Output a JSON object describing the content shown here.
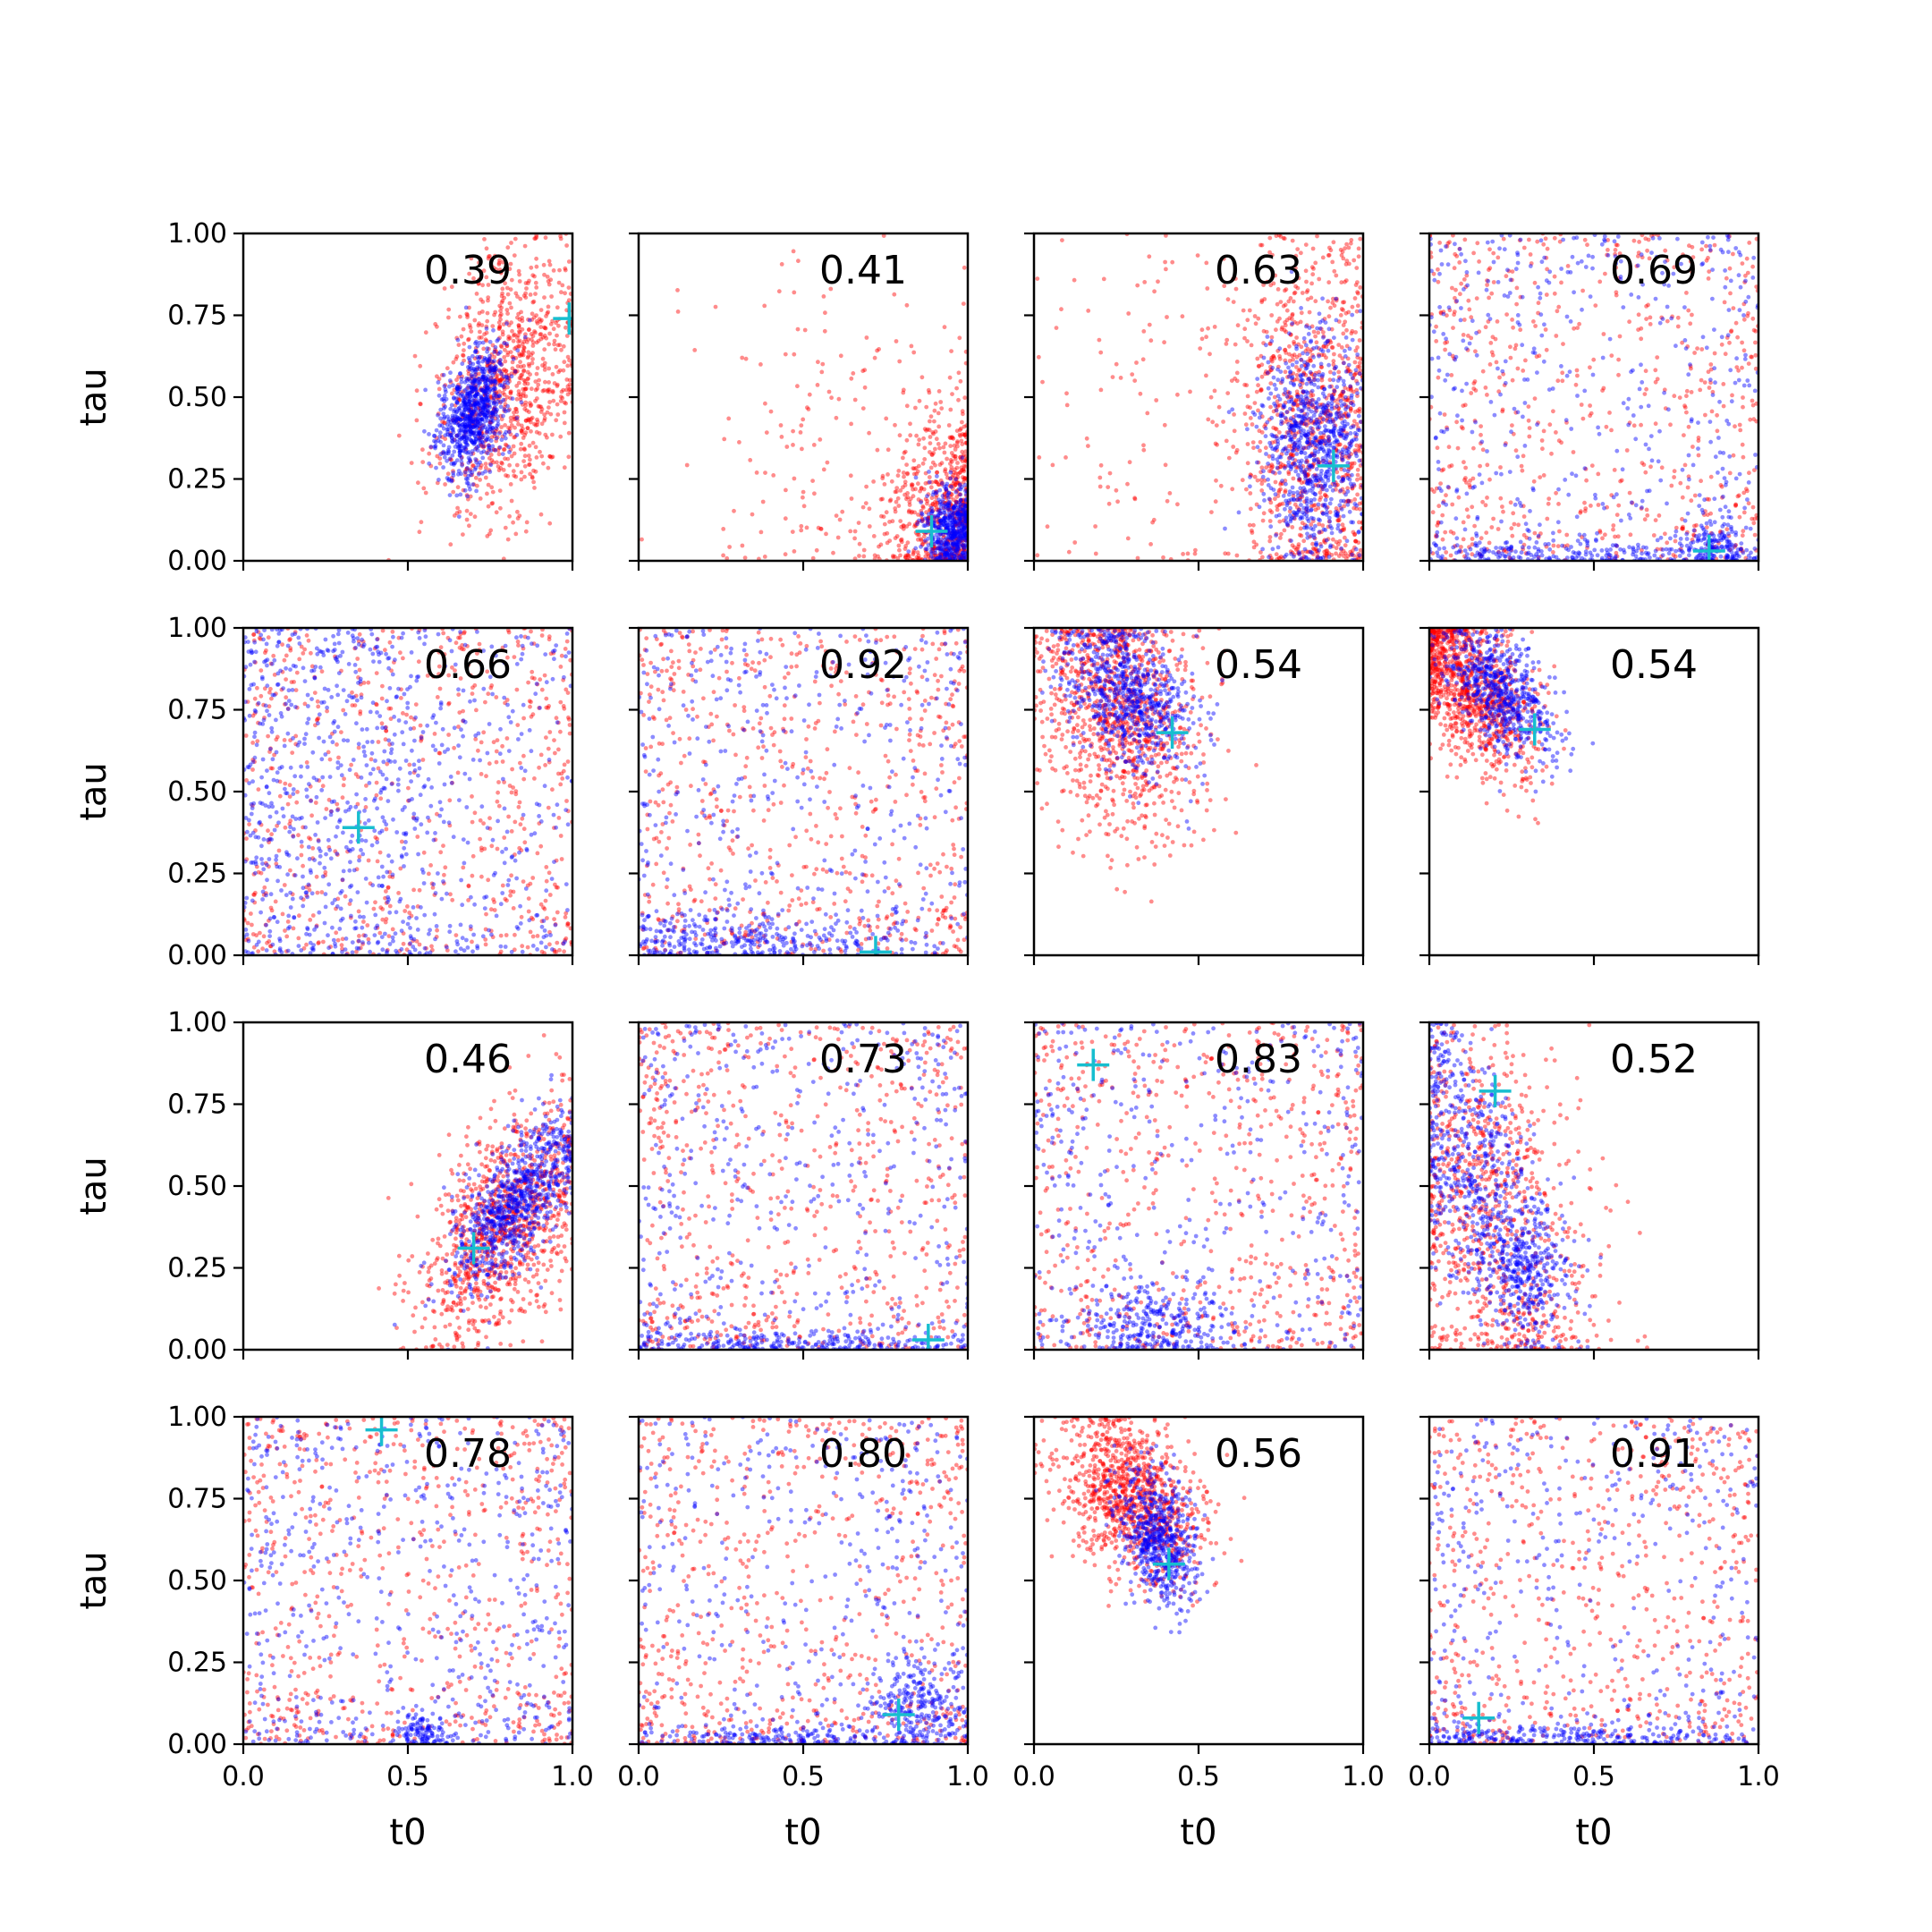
{
  "figure": {
    "x_axis_label": "t0",
    "y_axis_label": "tau",
    "x_ticks": [
      "0.0",
      "0.5",
      "1.0"
    ],
    "y_ticks": [
      "0.00",
      "0.25",
      "0.50",
      "0.75",
      "1.00"
    ]
  },
  "chart_data": {
    "type": "scatter",
    "layout": "4x4 grid",
    "xlim": [
      0,
      1
    ],
    "ylim": [
      0,
      1
    ],
    "xlabel": "t0",
    "ylabel": "tau",
    "colors": {
      "series_a": "#ff0000",
      "series_b": "#0000ff",
      "marker": "#17becf"
    },
    "panels": [
      {
        "score": "0.39",
        "marker": [
          0.99,
          0.74
        ],
        "red": [
          {
            "x": 0.8,
            "y": 0.55,
            "sx": 0.11,
            "sy": 0.2,
            "r": 0.3,
            "n": 900
          }
        ],
        "blue": [
          {
            "x": 0.7,
            "y": 0.45,
            "sx": 0.05,
            "sy": 0.1,
            "r": 0.4,
            "n": 800
          }
        ]
      },
      {
        "score": "0.41",
        "marker": [
          0.89,
          0.09
        ],
        "red": [
          {
            "x": 0.93,
            "y": 0.15,
            "sx": 0.1,
            "sy": 0.16,
            "r": 0,
            "n": 600
          },
          {
            "x": 0.6,
            "y": 0.35,
            "sx": 0.25,
            "sy": 0.28,
            "r": 0,
            "n": 180
          }
        ],
        "blue": [
          {
            "x": 0.95,
            "y": 0.1,
            "sx": 0.04,
            "sy": 0.06,
            "r": 0,
            "n": 500
          }
        ]
      },
      {
        "score": "0.63",
        "marker": [
          0.91,
          0.29
        ],
        "red": [
          {
            "x": 0.85,
            "y": 0.4,
            "sx": 0.12,
            "sy": 0.3,
            "r": 0,
            "n": 900
          },
          {
            "x": 0.5,
            "y": 0.5,
            "sx": 0.25,
            "sy": 0.3,
            "r": 0,
            "n": 150
          }
        ],
        "blue": [
          {
            "x": 0.85,
            "y": 0.35,
            "sx": 0.08,
            "sy": 0.18,
            "r": 0,
            "n": 800
          }
        ]
      },
      {
        "score": "0.69",
        "marker": [
          0.85,
          0.03
        ],
        "red": [
          {
            "x": 0.5,
            "y": 0.5,
            "sx": 0.55,
            "sy": 0.55,
            "r": 0,
            "n": 650
          }
        ],
        "blue": [
          {
            "x": 0.5,
            "y": 0.5,
            "sx": 0.55,
            "sy": 0.55,
            "r": 0,
            "n": 450
          },
          {
            "x": 0.5,
            "y": 0.02,
            "sx": 0.3,
            "sy": 0.02,
            "r": 0,
            "n": 200
          },
          {
            "x": 0.87,
            "y": 0.05,
            "sx": 0.04,
            "sy": 0.04,
            "r": 0,
            "n": 120
          }
        ]
      },
      {
        "score": "0.66",
        "marker": [
          0.35,
          0.39
        ],
        "red": [
          {
            "x": 0.5,
            "y": 0.5,
            "sx": 0.55,
            "sy": 0.55,
            "r": 0,
            "n": 700
          }
        ],
        "blue": [
          {
            "x": 0.3,
            "y": 0.5,
            "sx": 0.25,
            "sy": 0.35,
            "r": -0.2,
            "n": 600
          },
          {
            "x": 0.5,
            "y": 0.5,
            "sx": 0.55,
            "sy": 0.55,
            "r": 0,
            "n": 300
          }
        ]
      },
      {
        "score": "0.92",
        "marker": [
          0.72,
          0.01
        ],
        "red": [
          {
            "x": 0.5,
            "y": 0.5,
            "sx": 0.55,
            "sy": 0.55,
            "r": 0,
            "n": 650
          }
        ],
        "blue": [
          {
            "x": 0.5,
            "y": 0.5,
            "sx": 0.55,
            "sy": 0.55,
            "r": 0,
            "n": 450
          },
          {
            "x": 0.3,
            "y": 0.04,
            "sx": 0.25,
            "sy": 0.04,
            "r": 0,
            "n": 250
          }
        ]
      },
      {
        "score": "0.54",
        "marker": [
          0.42,
          0.68
        ],
        "red": [
          {
            "x": 0.25,
            "y": 0.75,
            "sx": 0.13,
            "sy": 0.2,
            "r": -0.3,
            "n": 1000
          }
        ],
        "blue": [
          {
            "x": 0.28,
            "y": 0.8,
            "sx": 0.1,
            "sy": 0.12,
            "r": -0.4,
            "n": 700
          }
        ]
      },
      {
        "score": "0.54",
        "marker": [
          0.32,
          0.69
        ],
        "red": [
          {
            "x": 0.12,
            "y": 0.82,
            "sx": 0.1,
            "sy": 0.13,
            "r": -0.5,
            "n": 1000
          }
        ],
        "blue": [
          {
            "x": 0.22,
            "y": 0.8,
            "sx": 0.08,
            "sy": 0.1,
            "r": -0.5,
            "n": 600
          }
        ]
      },
      {
        "score": "0.46",
        "marker": [
          0.7,
          0.31
        ],
        "red": [
          {
            "x": 0.8,
            "y": 0.38,
            "sx": 0.13,
            "sy": 0.18,
            "r": 0.5,
            "n": 1000
          }
        ],
        "blue": [
          {
            "x": 0.82,
            "y": 0.45,
            "sx": 0.1,
            "sy": 0.13,
            "r": 0.7,
            "n": 800
          }
        ]
      },
      {
        "score": "0.73",
        "marker": [
          0.88,
          0.03
        ],
        "red": [
          {
            "x": 0.5,
            "y": 0.5,
            "sx": 0.55,
            "sy": 0.55,
            "r": 0,
            "n": 650
          }
        ],
        "blue": [
          {
            "x": 0.5,
            "y": 0.5,
            "sx": 0.55,
            "sy": 0.55,
            "r": 0,
            "n": 450
          },
          {
            "x": 0.5,
            "y": 0.02,
            "sx": 0.3,
            "sy": 0.02,
            "r": 0,
            "n": 220
          }
        ]
      },
      {
        "score": "0.83",
        "marker": [
          0.18,
          0.87
        ],
        "red": [
          {
            "x": 0.5,
            "y": 0.5,
            "sx": 0.55,
            "sy": 0.55,
            "r": 0,
            "n": 650
          }
        ],
        "blue": [
          {
            "x": 0.5,
            "y": 0.5,
            "sx": 0.55,
            "sy": 0.55,
            "r": 0,
            "n": 400
          },
          {
            "x": 0.38,
            "y": 0.08,
            "sx": 0.12,
            "sy": 0.07,
            "r": 0,
            "n": 280
          }
        ]
      },
      {
        "score": "0.52",
        "marker": [
          0.2,
          0.79
        ],
        "red": [
          {
            "x": 0.2,
            "y": 0.4,
            "sx": 0.15,
            "sy": 0.3,
            "r": -0.3,
            "n": 850
          }
        ],
        "blue": [
          {
            "x": 0.15,
            "y": 0.5,
            "sx": 0.12,
            "sy": 0.25,
            "r": -0.6,
            "n": 650
          },
          {
            "x": 0.3,
            "y": 0.25,
            "sx": 0.06,
            "sy": 0.08,
            "r": 0,
            "n": 250
          }
        ]
      },
      {
        "score": "0.78",
        "marker": [
          0.42,
          0.96
        ],
        "red": [
          {
            "x": 0.5,
            "y": 0.5,
            "sx": 0.55,
            "sy": 0.55,
            "r": 0,
            "n": 650
          }
        ],
        "blue": [
          {
            "x": 0.5,
            "y": 0.5,
            "sx": 0.55,
            "sy": 0.55,
            "r": 0,
            "n": 550
          },
          {
            "x": 0.55,
            "y": 0.03,
            "sx": 0.04,
            "sy": 0.03,
            "r": 0,
            "n": 100
          }
        ]
      },
      {
        "score": "0.80",
        "marker": [
          0.79,
          0.09
        ],
        "red": [
          {
            "x": 0.5,
            "y": 0.5,
            "sx": 0.55,
            "sy": 0.55,
            "r": 0,
            "n": 650
          }
        ],
        "blue": [
          {
            "x": 0.5,
            "y": 0.5,
            "sx": 0.55,
            "sy": 0.55,
            "r": 0,
            "n": 400
          },
          {
            "x": 0.85,
            "y": 0.12,
            "sx": 0.08,
            "sy": 0.08,
            "r": 0,
            "n": 250
          },
          {
            "x": 0.4,
            "y": 0.02,
            "sx": 0.2,
            "sy": 0.02,
            "r": 0,
            "n": 150
          }
        ]
      },
      {
        "score": "0.56",
        "marker": [
          0.41,
          0.55
        ],
        "red": [
          {
            "x": 0.3,
            "y": 0.75,
            "sx": 0.11,
            "sy": 0.13,
            "r": -0.4,
            "n": 1000
          }
        ],
        "blue": [
          {
            "x": 0.38,
            "y": 0.62,
            "sx": 0.06,
            "sy": 0.1,
            "r": -0.3,
            "n": 600
          }
        ]
      },
      {
        "score": "0.91",
        "marker": [
          0.15,
          0.08
        ],
        "red": [
          {
            "x": 0.5,
            "y": 0.5,
            "sx": 0.55,
            "sy": 0.55,
            "r": 0,
            "n": 650
          }
        ],
        "blue": [
          {
            "x": 0.5,
            "y": 0.5,
            "sx": 0.55,
            "sy": 0.55,
            "r": 0,
            "n": 400
          },
          {
            "x": 0.4,
            "y": 0.02,
            "sx": 0.3,
            "sy": 0.02,
            "r": 0,
            "n": 220
          }
        ]
      }
    ]
  }
}
